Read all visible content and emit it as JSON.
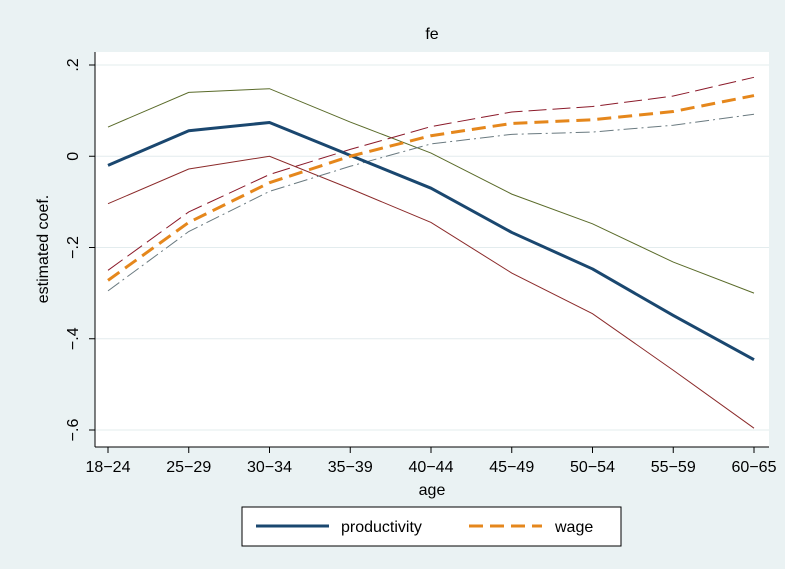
{
  "chart_data": {
    "type": "line",
    "title": "fe",
    "xlabel": "age",
    "ylabel": "estimated coef.",
    "categories": [
      "18−24",
      "25−29",
      "30−34",
      "35−39",
      "40−44",
      "45−49",
      "50−54",
      "55−59",
      "60−65"
    ],
    "ylim": [
      -0.6,
      0.2
    ],
    "yticks": [
      0.2,
      0,
      -0.2,
      -0.4,
      -0.6
    ],
    "ytick_labels": [
      ".2",
      "0",
      "−.2",
      "−.4",
      "−.6"
    ],
    "grid": true,
    "legend_position": "bottom",
    "series": [
      {
        "name": "productivity",
        "values": [
          -0.02,
          0.056,
          0.074,
          0.002,
          -0.07,
          -0.167,
          -0.247,
          -0.349,
          -0.446
        ],
        "color": "#1a476f",
        "style": "solid",
        "width": 3
      },
      {
        "name": "wage",
        "values": [
          -0.272,
          -0.145,
          -0.058,
          0.0,
          0.045,
          0.072,
          0.08,
          0.098,
          0.133
        ],
        "color": "#e5871c",
        "style": "dashed",
        "width": 3
      }
    ],
    "bands": [
      {
        "values": [
          0.064,
          0.14,
          0.148,
          0.075,
          0.007,
          -0.083,
          -0.148,
          -0.232,
          -0.3
        ],
        "color": "#5a6b2a",
        "style": "solid"
      },
      {
        "values": [
          -0.104,
          -0.028,
          0.0,
          -0.071,
          -0.145,
          -0.256,
          -0.345,
          -0.469,
          -0.596
        ],
        "color": "#8b2a2a",
        "style": "solid"
      },
      {
        "values": [
          -0.25,
          -0.122,
          -0.04,
          0.015,
          0.065,
          0.097,
          0.109,
          0.132,
          0.173
        ],
        "color": "#8b1a2a",
        "style": "longdash"
      },
      {
        "values": [
          -0.295,
          -0.165,
          -0.077,
          -0.022,
          0.027,
          0.048,
          0.053,
          0.068,
          0.092
        ],
        "color": "#6a7a80",
        "style": "dashdot"
      }
    ]
  }
}
